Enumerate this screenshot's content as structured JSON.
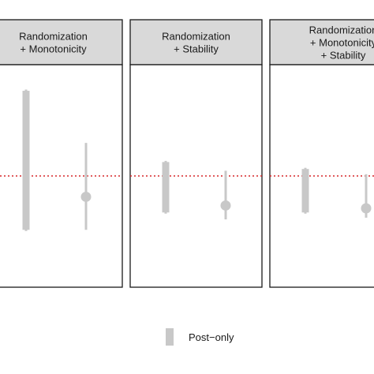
{
  "chart_data": {
    "type": "interval",
    "facets": [
      {
        "label_lines": [
          "Randomization",
          "+ Monotonicity"
        ],
        "intervals": [
          {
            "kind": "bar",
            "low": -1.55,
            "high": 2.45
          },
          {
            "kind": "point-range",
            "low": -1.55,
            "high": 0.95,
            "point": -0.6
          }
        ]
      },
      {
        "label_lines": [
          "Randomization",
          "+ Stability"
        ],
        "intervals": [
          {
            "kind": "bar",
            "low": -1.05,
            "high": 0.4
          },
          {
            "kind": "point-range",
            "low": -1.25,
            "high": 0.15,
            "point": -0.85
          }
        ]
      },
      {
        "label_lines": [
          "Randomization",
          "+ Monotonicity",
          "+ Stability"
        ],
        "intervals": [
          {
            "kind": "bar",
            "low": -1.05,
            "high": 0.2
          },
          {
            "kind": "point-range",
            "low": -1.2,
            "high": 0.05,
            "point": -0.93
          }
        ]
      }
    ],
    "reference_line": {
      "y": 0,
      "style": "dotted",
      "color": "#d62728"
    },
    "ylim": [
      -3.2,
      3.2
    ],
    "legend": {
      "position": "bottom",
      "entries": [
        "Post−only"
      ]
    },
    "colors": {
      "interval": "#c8c8c8",
      "strip_fill": "#d9d9d9",
      "panel_border": "#1a1a1a"
    }
  }
}
